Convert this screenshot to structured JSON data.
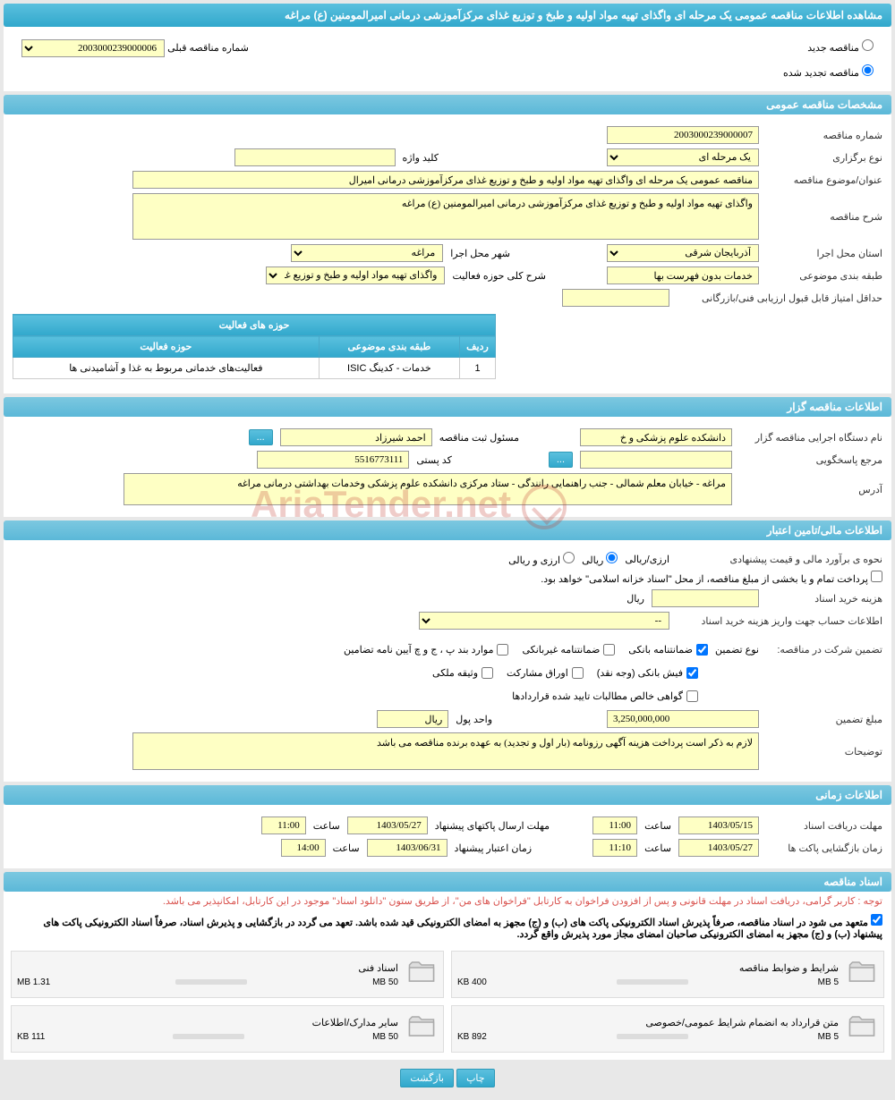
{
  "page_title": "مشاهده اطلاعات مناقصه عمومی یک مرحله ای واگذای تهیه مواد اولیه و طبخ و توزیع غذای مرکزآموزشی درمانی امیرالمومنین (ع) مراغه",
  "radio_options": {
    "new_tender": "مناقصه جدید",
    "renewed_tender": "مناقصه تجدید شده"
  },
  "prev_tender": {
    "label": "شماره مناقصه قبلی",
    "value": "2003000239000006"
  },
  "sections": {
    "general": "مشخصات مناقصه عمومی",
    "organizer": "اطلاعات مناقصه گزار",
    "financial": "اطلاعات مالی/تامین اعتبار",
    "timing": "اطلاعات زمانی",
    "documents": "اسناد مناقصه"
  },
  "general": {
    "tender_number_label": "شماره مناقصه",
    "tender_number": "2003000239000007",
    "holding_type_label": "نوع برگزاری",
    "holding_type": "یک مرحله ای",
    "keyword_label": "کلید واژه",
    "keyword": "",
    "subject_label": "عنوان/موضوع مناقصه",
    "subject": "مناقصه عمومی یک مرحله ای واگذای تهیه مواد اولیه و طبخ و توزیع غذای مرکزآموزشی درمانی امیرال",
    "description_label": "شرح مناقصه",
    "description": "واگذای تهیه مواد اولیه و طبخ و توزیع غذای مرکزآموزشی درمانی امیرالمومنین (ع) مراغه",
    "province_label": "استان محل اجرا",
    "province": "آذربایجان شرقی",
    "city_label": "شهر محل اجرا",
    "city": "مراغه",
    "category_label": "طبقه بندی موضوعی",
    "category": "خدمات بدون فهرست بها",
    "activity_scope_label": "شرح کلی حوزه فعالیت",
    "activity_scope": "واگذای تهیه مواد اولیه و طبخ و توزیع غذای",
    "min_score_label": "حداقل امتیاز قابل قبول ارزیابی فنی/بازرگانی",
    "min_score": ""
  },
  "activity_table": {
    "title": "حوزه های فعالیت",
    "headers": {
      "row": "ردیف",
      "category": "طبقه بندی موضوعی",
      "scope": "حوزه فعالیت"
    },
    "rows": [
      {
        "row": "1",
        "category": "خدمات - کدینگ ISIC",
        "scope": "فعالیت‌های خدماتی مربوط به غذا و آشامیدنی ها"
      }
    ]
  },
  "organizer": {
    "executor_label": "نام دستگاه اجرایی مناقصه گزار",
    "executor": "دانشکده علوم پزشکی و خ",
    "responsible_label": "مسئول ثبت مناقصه",
    "responsible": "احمد شیرزاد",
    "accountable_label": "مرجع پاسخگویی",
    "accountable": "",
    "postal_label": "کد پستی",
    "postal": "5516773111",
    "address_label": "آدرس",
    "address": "مراغه - خیابان معلم شمالی - جنب راهنمایی رانندگی - ستاد مرکزی دانشکده علوم پزشکی وخدمات بهداشتی درمانی مراغه"
  },
  "financial": {
    "estimate_label": "نحوه ی برآورد مالی و قیمت پیشنهادی",
    "currency_label": "ارزی/ریالی",
    "riyal": "ریالی",
    "currency": "ارزی و ریالی",
    "payment_note": "پرداخت تمام و یا بخشی از مبلغ مناقصه، از محل \"اسناد خزانه اسلامی\" خواهد بود.",
    "doc_cost_label": "هزینه خرید اسناد",
    "doc_cost": "",
    "riyal_unit": "ریال",
    "account_label": "اطلاعات حساب جهت واریز هزینه خرید اسناد",
    "account": "--",
    "guarantee_label": "تضمین شرکت در مناقصه:",
    "guarantee_type_label": "نوع تضمین",
    "checkboxes": {
      "bank_guarantee": "ضمانتنامه بانکی",
      "nonbank_guarantee": "ضمانتنامه غیربانکی",
      "bylaw_cases": "موارد بند پ ، ج و چ آیین نامه تضامین",
      "cash_receipt": "فیش بانکی (وجه نقد)",
      "participation_bonds": "اوراق مشارکت",
      "property_lien": "وثیقه ملکی",
      "receivables_cert": "گواهی خالص مطالبات تایید شده قراردادها"
    },
    "guarantee_amount_label": "مبلغ تضمین",
    "guarantee_amount": "3,250,000,000",
    "currency_unit_label": "واحد پول",
    "currency_unit": "ریال",
    "notes_label": "توضیحات",
    "notes": "لازم به ذکر است پرداخت هزینه آگهی رزونامه (بار اول و تجدید) به عهده برنده مناقصه می باشد"
  },
  "timing": {
    "doc_deadline_label": "مهلت دریافت اسناد",
    "doc_deadline_date": "1403/05/15",
    "doc_deadline_time_label": "ساعت",
    "doc_deadline_time": "11:00",
    "envelope_send_label": "مهلت ارسال پاکتهای پیشنهاد",
    "envelope_send_date": "1403/05/27",
    "envelope_send_time": "11:00",
    "envelope_open_label": "زمان بازگشایی پاکت ها",
    "envelope_open_date": "1403/05/27",
    "envelope_open_time": "11:10",
    "validity_label": "زمان اعتبار پیشنهاد",
    "validity_date": "1403/06/31",
    "validity_time": "14:00"
  },
  "documents": {
    "warning": "توجه : کاربر گرامی، دریافت اسناد در مهلت قانونی و پس از افزودن فراخوان به کارتابل \"فراخوان های من\"، از طریق ستون \"دانلود اسناد\" موجود در این کارتابل، امکانپذیر می باشد.",
    "commitment": "متعهد می شود در اسناد مناقصه، صرفاً پذیرش اسناد الکترونیکی پاکت های (ب) و (ج) مجهز به امضای الکترونیکی قید شده باشد. تعهد می گردد در بازگشایی و پذیرش اسناد، صرفاً اسناد الکترونیکی پاکت های پیشنهاد (ب) و (ج) مجهز به امضای الکترونیکی صاحبان امضای مجاز مورد پذیرش واقع گردد.",
    "items": [
      {
        "title": "شرایط و ضوابط مناقصه",
        "used": "400 KB",
        "total": "5 MB",
        "pct": 8
      },
      {
        "title": "اسناد فنی",
        "used": "1.31 MB",
        "total": "50 MB",
        "pct": 3
      },
      {
        "title": "متن قرارداد به انضمام شرایط عمومی/خصوصی",
        "used": "892 KB",
        "total": "5 MB",
        "pct": 18
      },
      {
        "title": "سایر مدارک/اطلاعات",
        "used": "111 KB",
        "total": "50 MB",
        "pct": 1
      }
    ]
  },
  "buttons": {
    "print": "چاپ",
    "back": "بازگشت",
    "ellipsis": "..."
  },
  "watermark": "AriaTender.net",
  "colors": {
    "header_bg": "#5bc0de",
    "yellow_bg": "#feffc4",
    "warning": "#d9534f"
  }
}
